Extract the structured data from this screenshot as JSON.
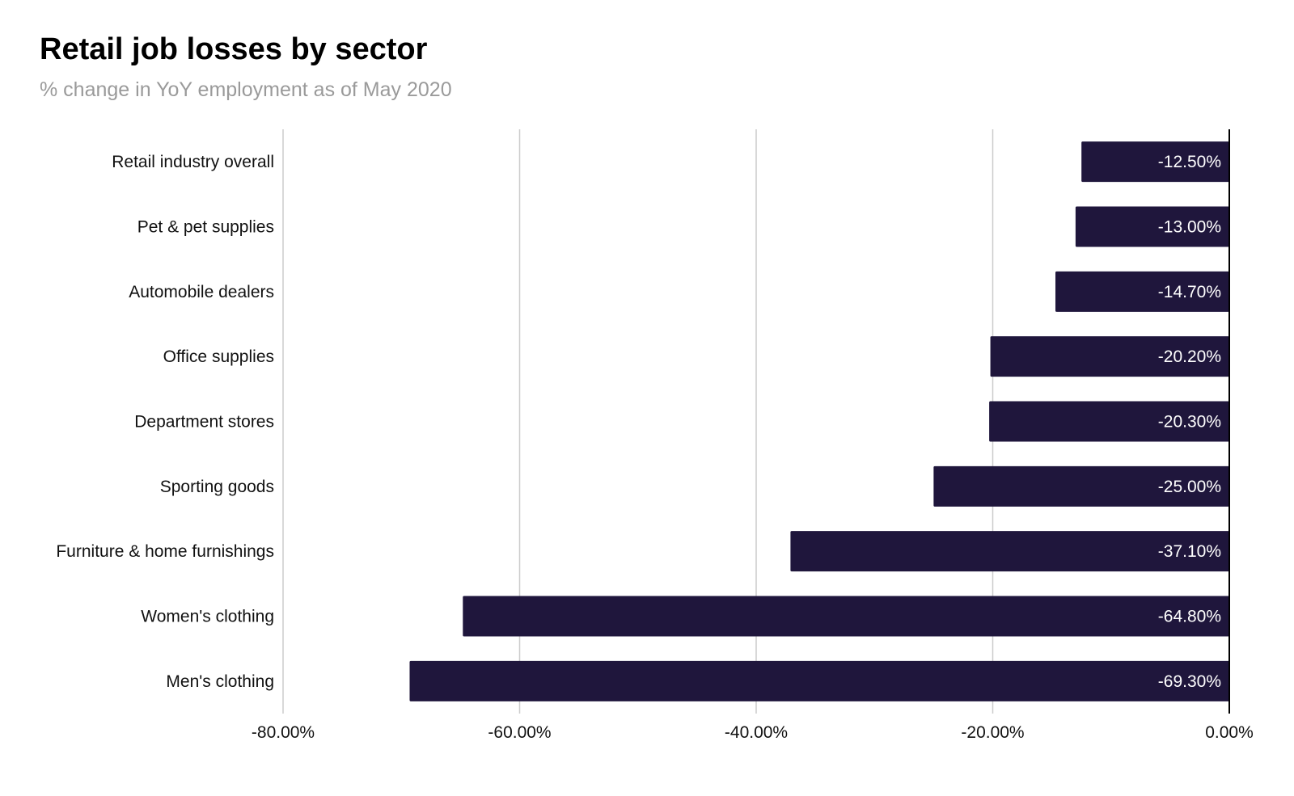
{
  "chart_data": {
    "type": "bar",
    "orientation": "horizontal",
    "title": "Retail job losses by sector",
    "subtitle": "% change in YoY employment as of May 2020",
    "categories": [
      "Retail industry overall",
      "Pet & pet supplies",
      "Automobile dealers",
      "Office supplies",
      "Department stores",
      "Sporting goods",
      "Furniture & home furnishings",
      "Women's clothing",
      "Men's clothing"
    ],
    "values": [
      -12.5,
      -13.0,
      -14.7,
      -20.2,
      -20.3,
      -25.0,
      -37.1,
      -64.8,
      -69.3
    ],
    "value_labels": [
      "-12.50%",
      "-13.00%",
      "-14.70%",
      "-20.20%",
      "-20.30%",
      "-25.00%",
      "-37.10%",
      "-64.80%",
      "-69.30%"
    ],
    "xlim": [
      -80,
      0
    ],
    "x_ticks": [
      -80,
      -60,
      -40,
      -20,
      0
    ],
    "x_tick_labels": [
      "-80.00%",
      "-60.00%",
      "-40.00%",
      "-20.00%",
      "0.00%"
    ],
    "grid": "vertical",
    "bar_color": "#1f163c",
    "grid_color": "#cccccc",
    "axis_color": "#000000"
  }
}
